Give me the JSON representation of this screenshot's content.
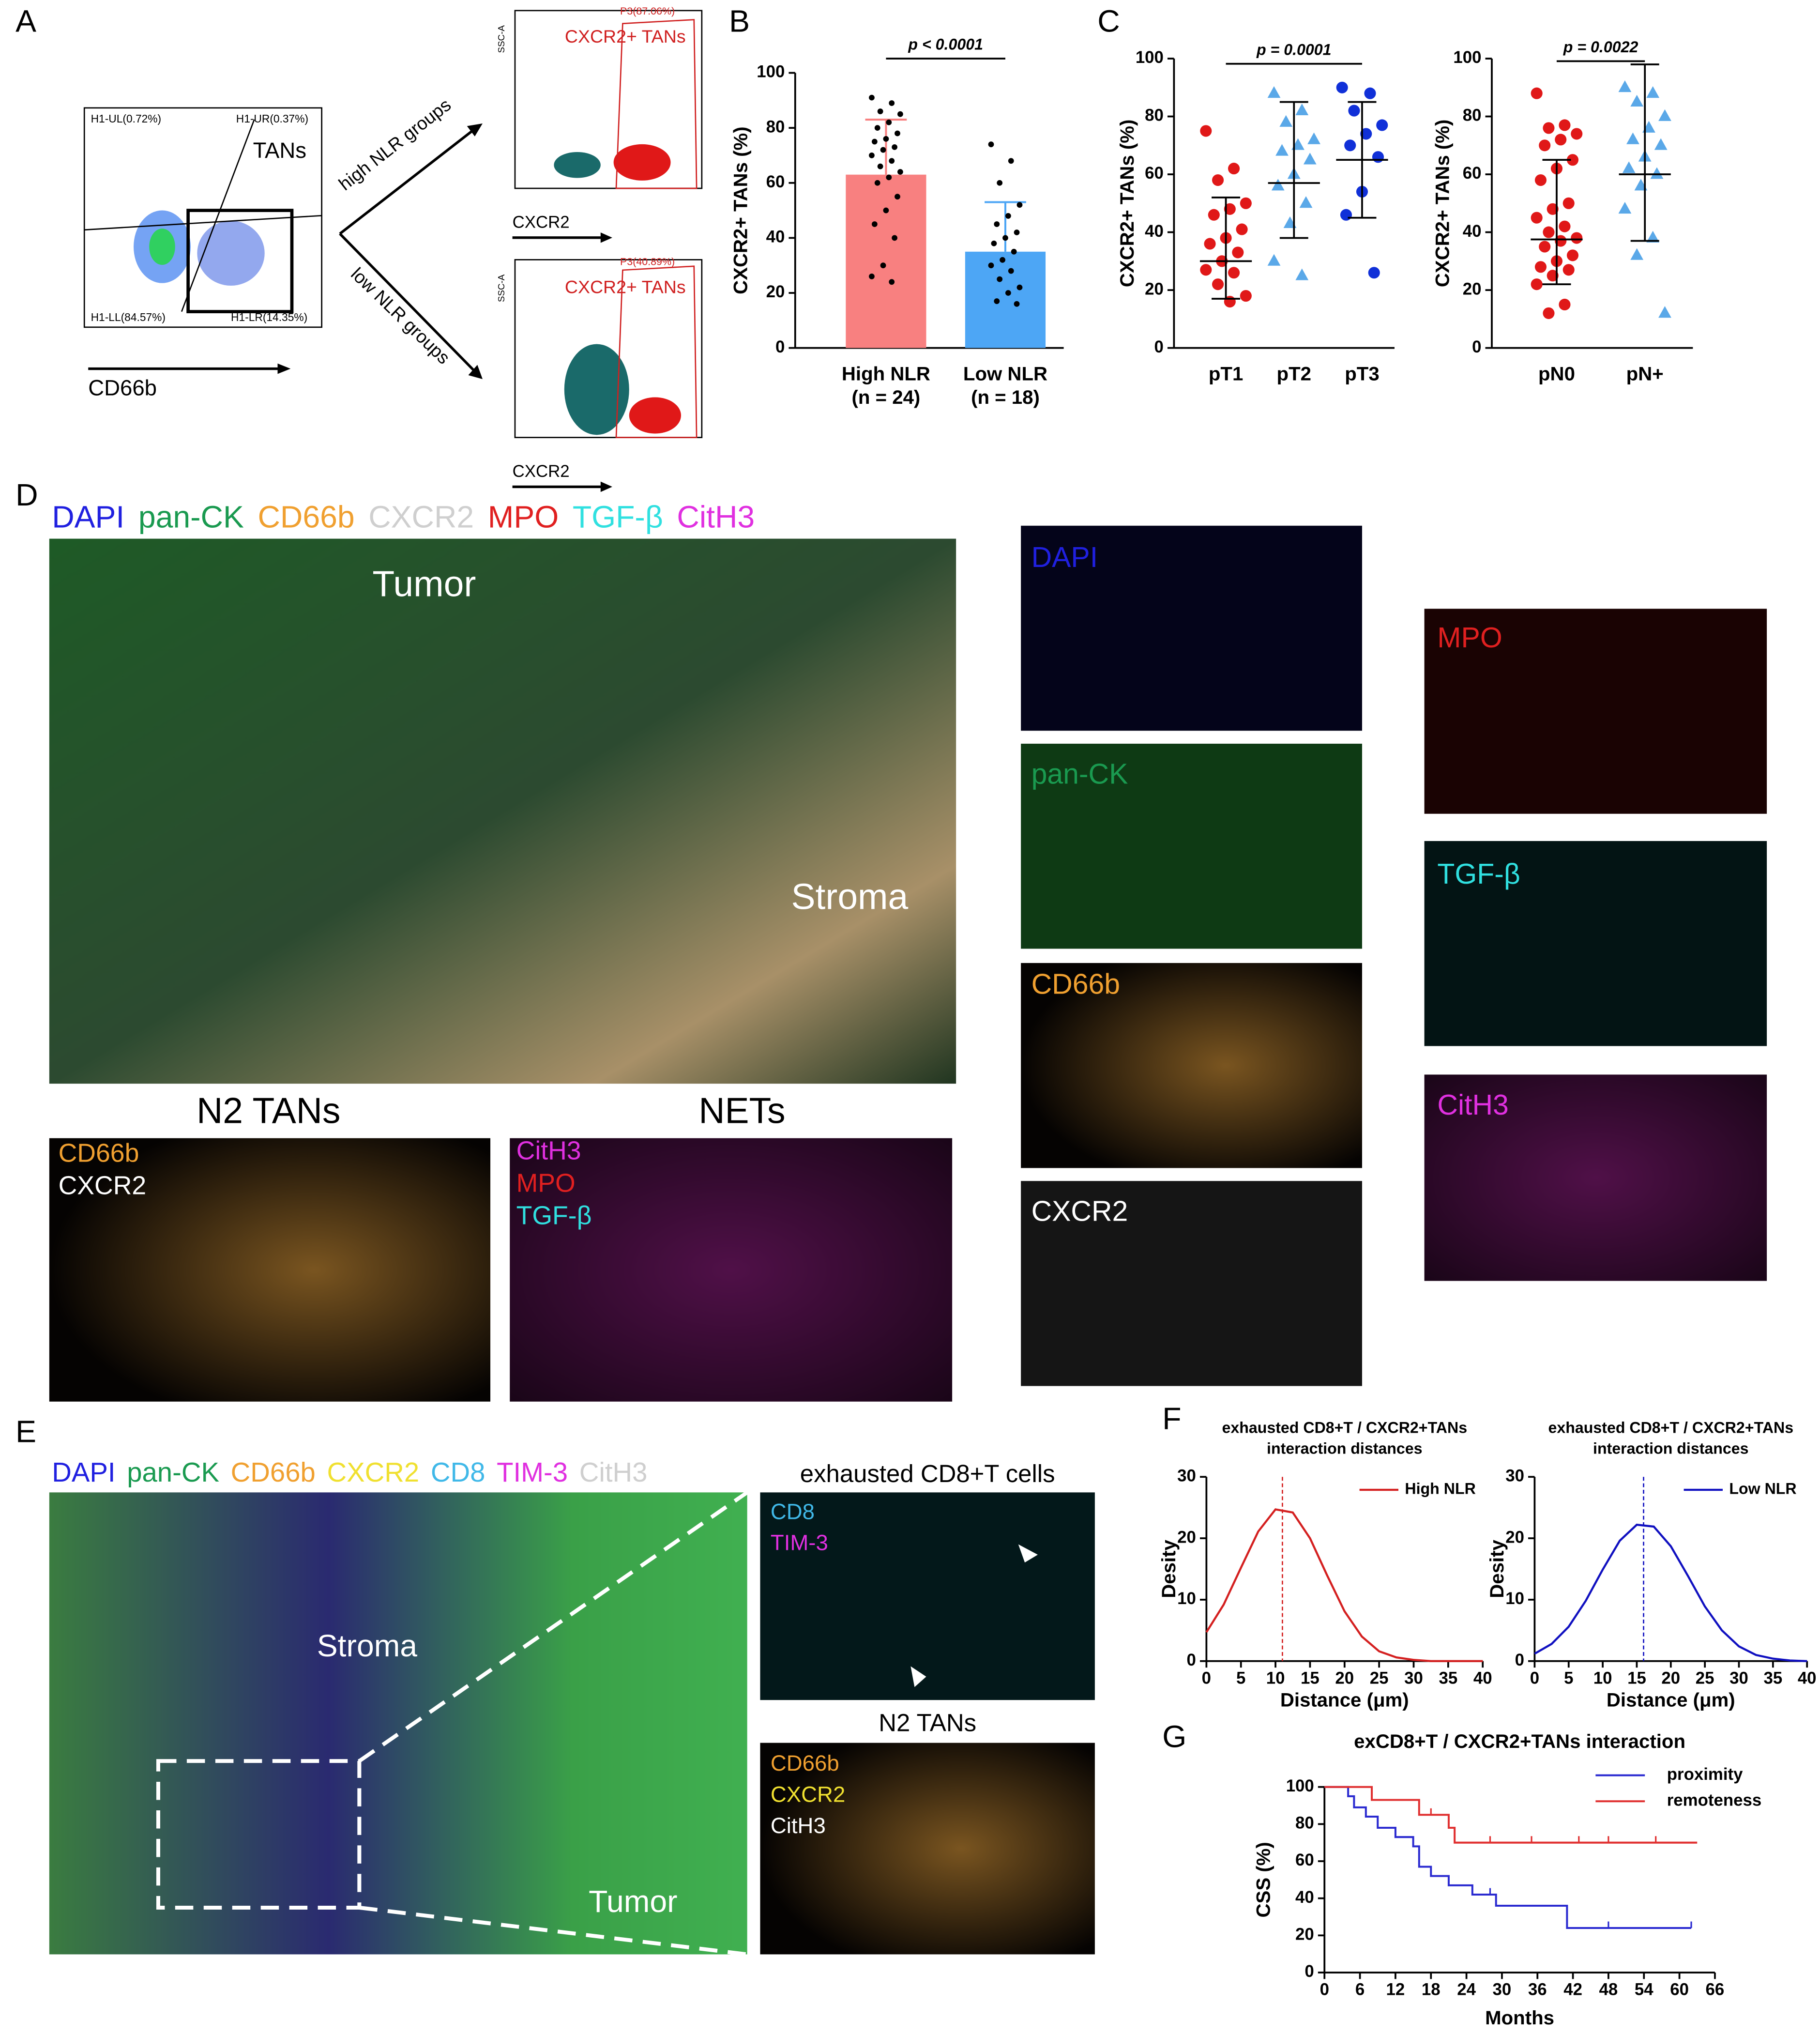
{
  "panel_labels": [
    "A",
    "B",
    "C",
    "D",
    "E",
    "F",
    "G"
  ],
  "flow": {
    "tans": "TANs",
    "x_label": "CD66b",
    "quadrants": [
      "H1-UL(0.72%)",
      "H1-UR(0.37%)",
      "H1-LL(84.57%)",
      "H1-LR(14.35%)"
    ],
    "high_arrow": "high NLR groups",
    "low_arrow": "low NLR groups",
    "gates": [
      {
        "name": "CXCR2+ TANs",
        "gate": "P3(87.06%)",
        "x_label": "CXCR2",
        "y_label": "SSC-A"
      },
      {
        "name": "CXCR2+ TANs",
        "gate": "P3(40.89%)",
        "x_label": "CXCR2",
        "y_label": "SSC-A"
      }
    ]
  },
  "panel_d": {
    "stains": [
      "DAPI",
      "pan-CK",
      "CD66b",
      "CXCR2",
      "MPO",
      "TGF-β",
      "CitH3"
    ],
    "regions": [
      "Tumor",
      "Stroma"
    ],
    "n2_title": "N2 TANs",
    "n2_labels": [
      "CD66b",
      "CXCR2"
    ],
    "nets_title": "NETs",
    "nets_labels": [
      "CitH3",
      "MPO",
      "TGF-β"
    ],
    "channels": [
      "DAPI",
      "pan-CK",
      "CD66b",
      "CXCR2",
      "MPO",
      "TGF-β",
      "CitH3"
    ]
  },
  "panel_e": {
    "stains": [
      "DAPI",
      "pan-CK",
      "CD66b",
      "CXCR2",
      "CD8",
      "TIM-3",
      "CitH3"
    ],
    "regions": [
      "Stroma",
      "Tumor"
    ],
    "inset1_title": "exhausted CD8+T cells",
    "inset1_labels": [
      "CD8",
      "TIM-3"
    ],
    "inset2_title": "N2 TANs",
    "inset2_labels": [
      "CD66b",
      "CXCR2",
      "CitH3"
    ]
  },
  "chart_data": [
    {
      "type": "bar",
      "ylabel": "CXCR2+ TANs (%)",
      "categories": [
        "High NLR",
        "Low NLR"
      ],
      "category_notes": [
        "(n = 24)",
        "(n = 18)"
      ],
      "values": [
        63,
        35
      ],
      "errors": [
        20,
        18
      ],
      "colors": [
        "#f88080",
        "#4da6f5"
      ],
      "points": [
        [
          91,
          89,
          86,
          85,
          82,
          80,
          78,
          76,
          75,
          73,
          72,
          70,
          68,
          66,
          64,
          62,
          60,
          55,
          50,
          45,
          40,
          30,
          26,
          24
        ],
        [
          74,
          68,
          60,
          52,
          48,
          45,
          42,
          40,
          38,
          35,
          32,
          30,
          28,
          25,
          22,
          20,
          17,
          16
        ]
      ],
      "ylim": [
        0,
        100
      ],
      "yticks": [
        0,
        20,
        40,
        60,
        80,
        100
      ],
      "annotation": "p < 0.0001"
    },
    {
      "type": "strip",
      "ylabel": "CXCR2+ TANs (%)",
      "categories": [
        "pT1",
        "pT2",
        "pT3"
      ],
      "colors": [
        "#e01818",
        "#5aa8e8",
        "#1030d8"
      ],
      "markers": [
        "circle",
        "triangle",
        "circle"
      ],
      "points": [
        [
          75,
          62,
          58,
          50,
          48,
          46,
          41,
          38,
          36,
          33,
          30,
          27,
          26,
          22,
          18,
          16
        ],
        [
          88,
          82,
          78,
          72,
          70,
          68,
          65,
          60,
          56,
          50,
          43,
          30,
          25
        ],
        [
          90,
          88,
          82,
          77,
          74,
          70,
          66,
          54,
          46,
          26
        ]
      ],
      "centers": [
        30,
        57,
        65
      ],
      "whisker_low": [
        17,
        38,
        45
      ],
      "whisker_high": [
        52,
        85,
        85
      ],
      "ylim": [
        0,
        100
      ],
      "yticks": [
        0,
        20,
        40,
        60,
        80,
        100
      ],
      "annotation": "p = 0.0001"
    },
    {
      "type": "strip",
      "ylabel": "CXCR2+ TANs (%)",
      "categories": [
        "pN0",
        "pN+"
      ],
      "colors": [
        "#e01818",
        "#5aa8e8"
      ],
      "markers": [
        "circle",
        "triangle"
      ],
      "points": [
        [
          88,
          77,
          76,
          74,
          72,
          70,
          65,
          62,
          58,
          50,
          48,
          45,
          42,
          40,
          38,
          37,
          35,
          32,
          30,
          28,
          27,
          25,
          22,
          15,
          12
        ],
        [
          90,
          88,
          85,
          80,
          76,
          72,
          70,
          66,
          62,
          60,
          56,
          48,
          38,
          32,
          12
        ]
      ],
      "centers": [
        37.5,
        60
      ],
      "whisker_low": [
        22,
        37
      ],
      "whisker_high": [
        65,
        98
      ],
      "ylim": [
        0,
        100
      ],
      "yticks": [
        0,
        20,
        40,
        60,
        80,
        100
      ],
      "annotation": "p = 0.0022"
    },
    {
      "type": "line",
      "title": "exhausted CD8+T / CXCR2+TANs",
      "subtitle": "interaction distances",
      "xlabel": "Distance (μm)",
      "ylabel": "Desity",
      "x": [
        0,
        2.5,
        5,
        7.5,
        10,
        12.5,
        15,
        17.5,
        20,
        22.5,
        25,
        27.5,
        30,
        32.5,
        35,
        37.5,
        40
      ],
      "series": [
        {
          "name": "High NLR",
          "color": "#d42020",
          "values": [
            4.7,
            9.2,
            15.2,
            21.1,
            24.7,
            24.2,
            20.0,
            13.9,
            8.1,
            4.0,
            1.6,
            0.6,
            0.2,
            0,
            0,
            0,
            0
          ]
        }
      ],
      "vline": 11,
      "xlim": [
        0,
        40
      ],
      "xticks": [
        0,
        5,
        10,
        15,
        20,
        25,
        30,
        35,
        40
      ],
      "ylim": [
        0,
        30
      ],
      "yticks": [
        0,
        10,
        20,
        30
      ],
      "legend": "upper right"
    },
    {
      "type": "line",
      "title": "exhausted CD8+T / CXCR2+TANs",
      "subtitle": "interaction distances",
      "xlabel": "Distance (μm)",
      "ylabel": "Desity",
      "x": [
        0,
        2.5,
        5,
        7.5,
        10,
        12.5,
        15,
        17.5,
        20,
        22.5,
        25,
        27.5,
        30,
        32.5,
        35,
        37.5,
        40
      ],
      "series": [
        {
          "name": "Low NLR",
          "color": "#1010c0",
          "values": [
            1.2,
            2.8,
            5.6,
            9.8,
            14.9,
            19.6,
            22.2,
            21.9,
            18.7,
            13.9,
            8.9,
            5.0,
            2.4,
            1.0,
            0.4,
            0.1,
            0
          ]
        }
      ],
      "vline": 16,
      "xlim": [
        0,
        40
      ],
      "xticks": [
        0,
        5,
        10,
        15,
        20,
        25,
        30,
        35,
        40
      ],
      "ylim": [
        0,
        30
      ],
      "yticks": [
        0,
        10,
        20,
        30
      ],
      "legend": "upper right"
    },
    {
      "type": "step",
      "title": "exCD8+T / CXCR2+TANs interaction",
      "xlabel": "Months",
      "ylabel": "CSS (%)",
      "series": [
        {
          "name": "proximity",
          "color": "#2a2ad0",
          "x": [
            0,
            4,
            5,
            7,
            9,
            12,
            15,
            16,
            18,
            21,
            25,
            29,
            41,
            62
          ],
          "values": [
            100,
            95,
            89,
            84,
            78,
            73,
            68,
            57,
            52,
            47,
            42,
            36,
            24,
            24
          ],
          "censored": [
            16,
            28,
            29,
            48,
            62
          ]
        },
        {
          "name": "remoteness",
          "color": "#e03030",
          "x": [
            0,
            8,
            16,
            21,
            22,
            63
          ],
          "values": [
            100,
            93,
            85,
            78,
            70,
            70
          ],
          "censored": [
            18,
            21,
            28,
            35,
            43,
            48,
            56
          ]
        }
      ],
      "xlim": [
        0,
        66
      ],
      "xticks": [
        0,
        6,
        12,
        18,
        24,
        30,
        36,
        42,
        48,
        54,
        60,
        66
      ],
      "ylim": [
        0,
        100
      ],
      "yticks": [
        0,
        20,
        40,
        60,
        80,
        100
      ],
      "legend": "upper right"
    }
  ]
}
